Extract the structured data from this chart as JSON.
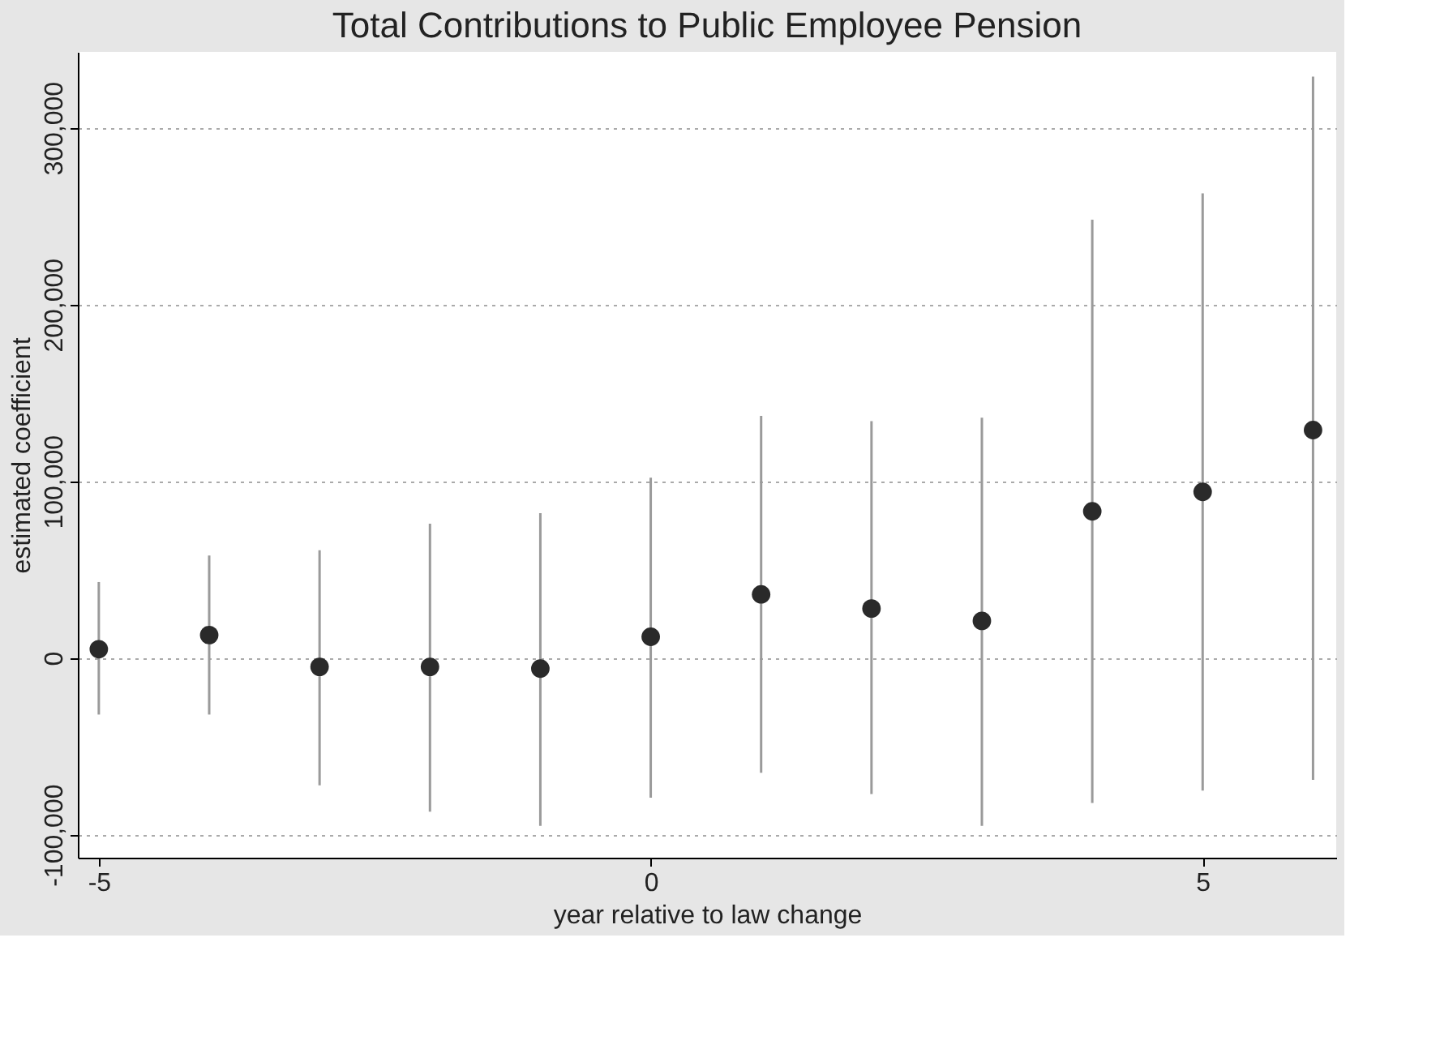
{
  "chart_data": {
    "type": "scatter",
    "title": "Total Contributions to Public Employee Pension",
    "xlabel": "year relative to law change",
    "ylabel": "estimated coefficient",
    "x": [
      -5,
      -4,
      -3,
      -2,
      -1,
      0,
      1,
      2,
      3,
      4,
      5,
      6
    ],
    "values": [
      5000,
      13000,
      -5000,
      -5000,
      -6000,
      12000,
      36000,
      28000,
      21000,
      83000,
      94000,
      129000
    ],
    "errors": [
      [
        -32000,
        43000
      ],
      [
        -32000,
        58000
      ],
      [
        -72000,
        61000
      ],
      [
        -87000,
        76000
      ],
      [
        -95000,
        82000
      ],
      [
        -79000,
        102000
      ],
      [
        -65000,
        137000
      ],
      [
        -77000,
        134000
      ],
      [
        -95000,
        136000
      ],
      [
        -82000,
        248000
      ],
      [
        -75000,
        263000
      ],
      [
        -69000,
        329000
      ]
    ],
    "color": "#2a2a2a",
    "marker": "circle",
    "xlim": [
      -5.19,
      6.21
    ],
    "xticks": [
      -5,
      0,
      5
    ],
    "ylim": [
      -113000,
      343000
    ],
    "yticks": [
      {
        "value": -100000,
        "label": "-100,000"
      },
      {
        "value": 0,
        "label": "0"
      },
      {
        "value": 100000,
        "label": "100,000"
      },
      {
        "value": 200000,
        "label": "200,000"
      },
      {
        "value": 300000,
        "label": "300,000"
      }
    ],
    "grid": "y"
  }
}
